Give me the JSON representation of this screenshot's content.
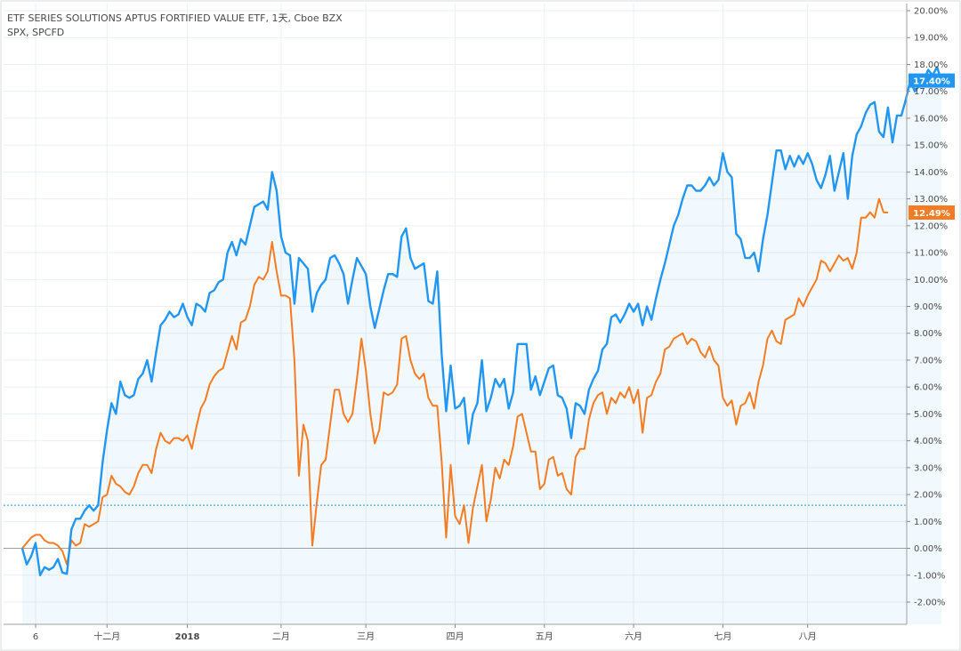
{
  "legend": {
    "line1": "ETF SERIES SOLUTIONS APTUS FORTIFIED VALUE ETF, 1天, Cboe BZX",
    "line2": "SPX, SPCFD"
  },
  "chart_data": {
    "type": "line",
    "y_unit": "%",
    "ylim": [
      -2.5,
      20.2
    ],
    "y_ticks": [
      "20.00%",
      "19.00%",
      "18.00%",
      "17.00%",
      "16.00%",
      "15.00%",
      "14.00%",
      "13.00%",
      "12.00%",
      "11.00%",
      "10.00%",
      "9.00%",
      "8.00%",
      "7.00%",
      "6.00%",
      "5.00%",
      "4.00%",
      "3.00%",
      "2.00%",
      "1.00%",
      "0.00%",
      "-1.00%",
      "-2.00%"
    ],
    "y_tick_values": [
      20,
      19,
      18,
      17,
      16,
      15,
      14,
      13,
      12,
      11,
      10,
      9,
      8,
      7,
      6,
      5,
      4,
      3,
      2,
      1,
      0,
      -1,
      -2
    ],
    "x_ticks": [
      {
        "label": "6",
        "t": 3,
        "bold": false
      },
      {
        "label": "十二月",
        "t": 19,
        "bold": false
      },
      {
        "label": "2018",
        "t": 37,
        "bold": true
      },
      {
        "label": "二月",
        "t": 58,
        "bold": false
      },
      {
        "label": "三月",
        "t": 77,
        "bold": false
      },
      {
        "label": "四月",
        "t": 97,
        "bold": false
      },
      {
        "label": "五月",
        "t": 117,
        "bold": false
      },
      {
        "label": "六月",
        "t": 137,
        "bold": false
      },
      {
        "label": "七月",
        "t": 157,
        "bold": false
      },
      {
        "label": "八月",
        "t": 176,
        "bold": false
      }
    ],
    "t_range": [
      0,
      198
    ],
    "reference_line": 1.6,
    "zero_line": 0,
    "series": [
      {
        "name": "ETF SERIES SOLUTIONS APTUS FORTIFIED VALUE ETF",
        "color": "#2196f3",
        "last_label": "17.40%",
        "values": [
          0,
          -0.6,
          -0.3,
          0.2,
          -1.0,
          -0.7,
          -0.8,
          -0.7,
          -0.4,
          -0.9,
          -0.95,
          0.7,
          1.1,
          1.1,
          1.4,
          1.6,
          1.4,
          1.6,
          3.2,
          4.4,
          5.4,
          5.0,
          6.2,
          5.7,
          5.6,
          5.7,
          6.3,
          6.5,
          7.0,
          6.2,
          7.3,
          8.3,
          8.5,
          8.8,
          8.6,
          8.7,
          9.1,
          8.6,
          8.3,
          9.1,
          9.0,
          8.8,
          9.5,
          9.6,
          9.9,
          10.0,
          11.0,
          11.4,
          10.9,
          11.5,
          11.3,
          12.0,
          12.7,
          12.8,
          12.9,
          12.6,
          14.0,
          13.3,
          11.6,
          11.0,
          10.9,
          9.1,
          10.8,
          10.6,
          10.4,
          8.8,
          9.5,
          9.8,
          10.0,
          10.8,
          10.9,
          10.6,
          10.2,
          9.1,
          10.0,
          10.8,
          10.5,
          10.2,
          9.0,
          8.2,
          8.9,
          9.6,
          10.2,
          10.2,
          10.1,
          11.6,
          11.9,
          10.8,
          10.4,
          10.5,
          10.6,
          9.2,
          9.1,
          10.3,
          7.2,
          5.1,
          6.8,
          5.2,
          5.3,
          5.6,
          3.9,
          5.0,
          5.4,
          7.0,
          5.1,
          5.6,
          6.3,
          6.0,
          6.3,
          5.2,
          5.8,
          7.6,
          7.6,
          7.6,
          5.9,
          6.4,
          5.7,
          6.2,
          6.7,
          6.8,
          5.7,
          5.6,
          5.2,
          4.1,
          5.4,
          5.3,
          5.0,
          5.9,
          6.3,
          6.6,
          7.4,
          7.6,
          8.6,
          8.7,
          8.4,
          8.7,
          9.1,
          8.8,
          9.1,
          8.3,
          9.0,
          8.5,
          9.3,
          10.0,
          10.6,
          11.3,
          12.0,
          12.4,
          13.0,
          13.5,
          13.5,
          13.3,
          13.3,
          13.5,
          13.8,
          13.5,
          13.7,
          14.7,
          14.0,
          13.8,
          11.7,
          11.5,
          10.8,
          10.8,
          11.0,
          10.3,
          11.5,
          12.4,
          13.6,
          14.8,
          14.8,
          14.1,
          14.6,
          14.2,
          14.6,
          14.3,
          14.7,
          14.3,
          13.7,
          13.4,
          13.9,
          14.6,
          13.3,
          14.0,
          14.7,
          13.0,
          14.6,
          15.4,
          15.7,
          16.2,
          16.5,
          16.6,
          15.5,
          15.3,
          16.4,
          15.1,
          16.1,
          16.1,
          16.7,
          17.4,
          17.0,
          17.2,
          17.4,
          17.8,
          17.6,
          17.9,
          17.4
        ]
      },
      {
        "name": "SPX, SPCFD",
        "color": "#f57c22",
        "last_label": "12.49%",
        "values": [
          0,
          0.2,
          0.4,
          0.5,
          0.5,
          0.3,
          0.2,
          0.2,
          0.1,
          -0.1,
          -0.6,
          0.3,
          0.1,
          0.2,
          0.9,
          0.8,
          0.9,
          1.0,
          1.9,
          2.0,
          2.7,
          2.4,
          2.3,
          2.1,
          2.0,
          2.3,
          2.8,
          3.1,
          3.1,
          2.8,
          3.7,
          4.3,
          4.0,
          3.9,
          4.1,
          4.1,
          4.0,
          4.2,
          3.7,
          4.5,
          5.2,
          5.5,
          6.1,
          6.4,
          6.6,
          6.7,
          7.3,
          7.9,
          7.4,
          8.4,
          8.5,
          9.0,
          9.8,
          10.1,
          10.0,
          10.3,
          11.4,
          10.3,
          9.4,
          9.4,
          9.3,
          7.0,
          2.7,
          4.6,
          4.0,
          0.1,
          1.7,
          3.1,
          3.3,
          4.6,
          5.9,
          5.9,
          5.0,
          4.7,
          5.0,
          6.3,
          7.8,
          6.6,
          5.0,
          3.9,
          4.4,
          5.8,
          5.7,
          5.8,
          6.1,
          7.8,
          7.9,
          7.0,
          6.5,
          6.3,
          6.5,
          5.6,
          5.3,
          5.3,
          3.2,
          0.4,
          3.1,
          1.2,
          0.9,
          1.6,
          0.2,
          1.5,
          2.3,
          3.1,
          1.0,
          1.8,
          3.0,
          2.6,
          3.3,
          3.1,
          3.8,
          4.9,
          5.0,
          4.3,
          3.6,
          3.6,
          2.2,
          2.4,
          3.3,
          3.4,
          2.7,
          2.8,
          2.2,
          2.0,
          3.4,
          3.7,
          3.7,
          4.8,
          5.4,
          5.7,
          5.8,
          5.0,
          5.6,
          5.4,
          5.8,
          5.6,
          6.0,
          5.4,
          5.9,
          4.3,
          5.6,
          5.7,
          6.2,
          6.5,
          7.4,
          7.5,
          7.8,
          7.9,
          8.0,
          7.6,
          7.8,
          7.7,
          7.3,
          7.1,
          7.5,
          7.0,
          6.8,
          5.6,
          5.3,
          5.5,
          4.6,
          5.3,
          5.4,
          5.8,
          5.2,
          6.2,
          6.8,
          7.8,
          8.1,
          7.7,
          7.6,
          8.5,
          8.6,
          8.7,
          9.3,
          9.0,
          9.4,
          9.7,
          10.0,
          10.7,
          10.6,
          10.3,
          10.6,
          10.9,
          10.7,
          10.8,
          10.4,
          11.0,
          12.3,
          12.3,
          12.5,
          12.3,
          13.0,
          12.5,
          12.49
        ]
      }
    ]
  }
}
